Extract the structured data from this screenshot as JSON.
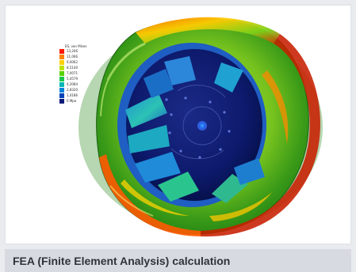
{
  "caption": "FEA (Finite Element Analysis) calculation",
  "image_alt": "FEA stress contour plot of a centrifugal fan impeller",
  "legend": {
    "title": "ES, von Mises",
    "items": [
      {
        "label": "13,206",
        "color": "#ff1a00"
      },
      {
        "label": "11,066",
        "color": "#ff7f00"
      },
      {
        "label": "9,0062",
        "color": "#ffd100"
      },
      {
        "label": "8,5140",
        "color": "#bfe300"
      },
      {
        "label": "7,0071",
        "color": "#58d100"
      },
      {
        "label": "5,4579",
        "color": "#17c84a"
      },
      {
        "label": "4,2084",
        "color": "#00b6b4"
      },
      {
        "label": "2,8320",
        "color": "#0083d9"
      },
      {
        "label": "1,4186",
        "color": "#0043b8"
      },
      {
        "label": "0 Mpa",
        "color": "#0a1a78"
      }
    ]
  },
  "colors": {
    "page_background": "#e9ebee",
    "image_background": "#ffffff",
    "caption_background": "#d7dbe1",
    "caption_text": "#2f343a"
  }
}
